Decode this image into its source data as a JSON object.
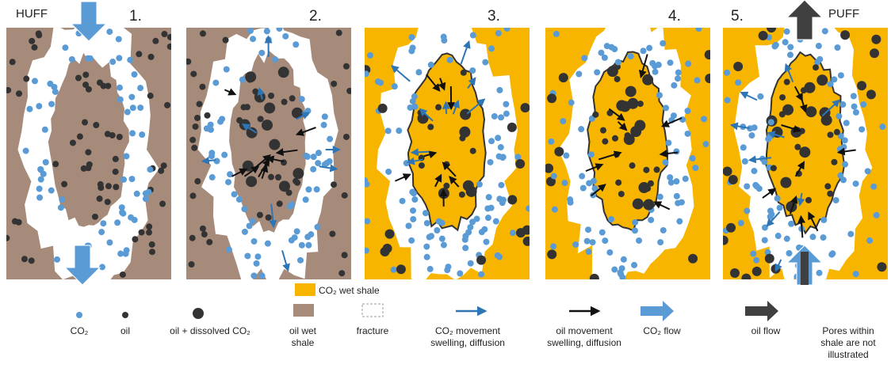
{
  "labels": {
    "huff": "HUFF",
    "puff": "PUFF"
  },
  "panels": [
    "1.",
    "2.",
    "3.",
    "4.",
    "5."
  ],
  "legend": {
    "co2_wet_shale": "CO₂ wet shale",
    "items": [
      {
        "label": [
          "CO₂"
        ]
      },
      {
        "label": [
          "oil"
        ]
      },
      {
        "label": [
          "oil + dissolved CO₂"
        ]
      },
      {
        "label": [
          "oil wet",
          "shale"
        ]
      },
      {
        "label": [
          "fracture"
        ]
      },
      {
        "label": [
          "CO₂ movement",
          "swelling, diffusion"
        ]
      },
      {
        "label": [
          "oil movement",
          "swelling, diffusion"
        ]
      },
      {
        "label": [
          "CO₂ flow"
        ]
      },
      {
        "label": [
          "oil flow"
        ]
      },
      {
        "label": [
          "Pores within",
          "shale are not",
          "illustrated"
        ]
      }
    ]
  }
}
